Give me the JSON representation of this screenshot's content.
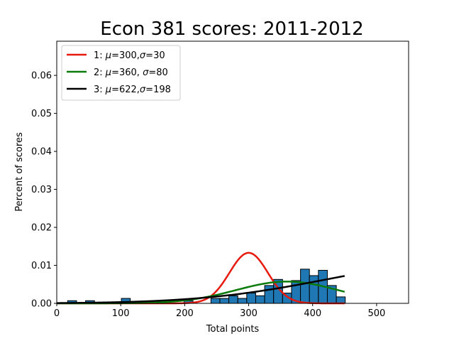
{
  "chart_data": {
    "type": "histogram",
    "title": "Econ 381 scores: 2011-2012",
    "xlabel": "Total points",
    "ylabel": "Percent of scores",
    "xlim": [
      0,
      550
    ],
    "ylim": [
      0,
      0.069
    ],
    "xticks": [
      0,
      100,
      200,
      300,
      400,
      500
    ],
    "yticks": [
      0.0,
      0.01,
      0.02,
      0.03,
      0.04,
      0.05,
      0.06
    ],
    "ytick_labels": [
      "0.00",
      "0.01",
      "0.02",
      "0.03",
      "0.04",
      "0.05",
      "0.06"
    ],
    "grid": false,
    "legend_position": "top-left",
    "bar_color": "#1f77b4",
    "bars": [
      {
        "x0": 17,
        "x1": 31,
        "value": 0.0007
      },
      {
        "x0": 31,
        "x1": 45,
        "value": 0.0
      },
      {
        "x0": 45,
        "x1": 59,
        "value": 0.0007
      },
      {
        "x0": 59,
        "x1": 73,
        "value": 0.0
      },
      {
        "x0": 73,
        "x1": 87,
        "value": 0.0
      },
      {
        "x0": 87,
        "x1": 101,
        "value": 0.0
      },
      {
        "x0": 101,
        "x1": 115,
        "value": 0.0013
      },
      {
        "x0": 115,
        "x1": 129,
        "value": 0.0
      },
      {
        "x0": 129,
        "x1": 143,
        "value": 0.0
      },
      {
        "x0": 143,
        "x1": 157,
        "value": 0.0
      },
      {
        "x0": 157,
        "x1": 171,
        "value": 0.0
      },
      {
        "x0": 171,
        "x1": 185,
        "value": 0.0
      },
      {
        "x0": 185,
        "x1": 199,
        "value": 0.0
      },
      {
        "x0": 199,
        "x1": 213,
        "value": 0.0007
      },
      {
        "x0": 213,
        "x1": 227,
        "value": 0.0
      },
      {
        "x0": 227,
        "x1": 241,
        "value": 0.0
      },
      {
        "x0": 241,
        "x1": 255,
        "value": 0.0013
      },
      {
        "x0": 255,
        "x1": 269,
        "value": 0.0013
      },
      {
        "x0": 269,
        "x1": 283,
        "value": 0.002
      },
      {
        "x0": 283,
        "x1": 297,
        "value": 0.0013
      },
      {
        "x0": 297,
        "x1": 311,
        "value": 0.0027
      },
      {
        "x0": 311,
        "x1": 325,
        "value": 0.002
      },
      {
        "x0": 325,
        "x1": 339,
        "value": 0.0047
      },
      {
        "x0": 339,
        "x1": 353,
        "value": 0.0063
      },
      {
        "x0": 353,
        "x1": 367,
        "value": 0.0027
      },
      {
        "x0": 367,
        "x1": 381,
        "value": 0.006
      },
      {
        "x0": 381,
        "x1": 395,
        "value": 0.009
      },
      {
        "x0": 395,
        "x1": 409,
        "value": 0.0073
      },
      {
        "x0": 409,
        "x1": 423,
        "value": 0.0087
      },
      {
        "x0": 423,
        "x1": 437,
        "value": 0.0047
      },
      {
        "x0": 437,
        "x1": 451,
        "value": 0.0017
      }
    ],
    "series": [
      {
        "legend_prefix": "1: ",
        "legend_params": "=300,",
        "legend_tail": "=30",
        "mu": 300,
        "sigma": 30,
        "color": "#e8190d"
      },
      {
        "legend_prefix": "2: ",
        "legend_params": "=360, ",
        "legend_tail": "=80",
        "mu": 360,
        "sigma": 80,
        "color": "#0a7a0a"
      },
      {
        "legend_prefix": "3: ",
        "legend_params": "=622,",
        "legend_tail": "=198",
        "mu": 622,
        "sigma": 198,
        "color": "#000000"
      }
    ],
    "curve_x_range": [
      0,
      450
    ]
  }
}
